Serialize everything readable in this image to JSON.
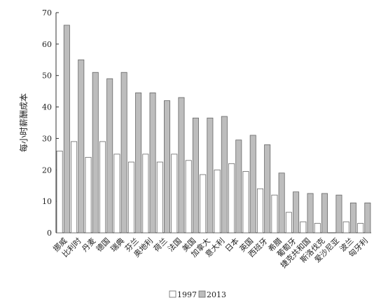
{
  "chart_data": {
    "type": "bar",
    "ylabel": "每小时薪酬成本",
    "ylim": [
      0,
      70
    ],
    "yticks": [
      0,
      10,
      20,
      30,
      40,
      50,
      60,
      70
    ],
    "grid": false,
    "legend_position": "bottom-center",
    "categories": [
      "挪威",
      "比利时",
      "丹麦",
      "德国",
      "瑞典",
      "芬兰",
      "奥地利",
      "荷兰",
      "法国",
      "美国",
      "加拿大",
      "意大利",
      "日本",
      "英国",
      "西班牙",
      "希腊",
      "葡萄牙",
      "捷克共和国",
      "斯洛伐克",
      "爱沙尼亚",
      "波兰",
      "匈牙利"
    ],
    "series": [
      {
        "name": "1997",
        "color": "#ffffff",
        "values": [
          26,
          29,
          24,
          29,
          25,
          22.5,
          25,
          22.5,
          25,
          23,
          18.5,
          20,
          22,
          19.5,
          14,
          12,
          6.5,
          3.5,
          3,
          0,
          3.5,
          3
        ]
      },
      {
        "name": "2013",
        "color": "#bdbdbd",
        "values": [
          66,
          55,
          51,
          49,
          51,
          44.5,
          44.5,
          42,
          43,
          36.5,
          36.5,
          37,
          29.5,
          31,
          28,
          19,
          13,
          12.5,
          12.5,
          12,
          9.5,
          9.5
        ]
      }
    ]
  }
}
